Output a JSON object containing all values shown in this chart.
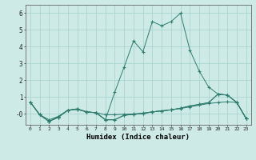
{
  "background_color": "#ceeae7",
  "grid_color": "#aad4d0",
  "line_color": "#2e7d6e",
  "marker_color": "#2e7d6e",
  "xlabel": "Humidex (Indice chaleur)",
  "xlim": [
    -0.5,
    23.5
  ],
  "ylim": [
    -0.65,
    6.5
  ],
  "yticks": [
    0,
    1,
    2,
    3,
    4,
    5,
    6
  ],
  "ytick_labels": [
    "-0",
    "1",
    "2",
    "3",
    "4",
    "5",
    "6"
  ],
  "xticks": [
    0,
    1,
    2,
    3,
    4,
    5,
    6,
    7,
    8,
    9,
    10,
    11,
    12,
    13,
    14,
    15,
    16,
    17,
    18,
    19,
    20,
    21,
    22,
    23
  ],
  "series": [
    {
      "x": [
        0,
        1,
        2,
        3,
        4,
        5,
        6,
        7,
        8,
        9,
        10,
        11,
        12,
        13,
        14,
        15,
        16,
        17,
        18,
        19,
        20,
        21,
        22,
        23
      ],
      "y": [
        0.7,
        -0.05,
        -0.35,
        -0.15,
        0.22,
        0.27,
        0.12,
        0.07,
        -0.05,
        -0.05,
        -0.02,
        0.0,
        0.05,
        0.12,
        0.18,
        0.24,
        0.32,
        0.42,
        0.52,
        0.62,
        0.68,
        0.72,
        0.68,
        -0.28
      ]
    },
    {
      "x": [
        0,
        1,
        2,
        3,
        4,
        5,
        6,
        7,
        8,
        9,
        10,
        11,
        12,
        13,
        14,
        15,
        16,
        17,
        18,
        19,
        20,
        21,
        22,
        23
      ],
      "y": [
        0.7,
        -0.05,
        -0.45,
        -0.15,
        0.22,
        0.27,
        0.12,
        0.07,
        -0.35,
        -0.35,
        -0.08,
        -0.03,
        0.02,
        0.12,
        0.18,
        0.24,
        0.34,
        0.47,
        0.57,
        0.67,
        1.18,
        1.12,
        0.68,
        -0.28
      ]
    },
    {
      "x": [
        0,
        1,
        2,
        3,
        4,
        5,
        6,
        7,
        8,
        9,
        10,
        11,
        12,
        13,
        14,
        15,
        16,
        17,
        18,
        19,
        20,
        21,
        22,
        23
      ],
      "y": [
        0.7,
        -0.05,
        -0.45,
        -0.2,
        0.22,
        0.3,
        0.12,
        0.07,
        -0.35,
        1.3,
        2.8,
        4.35,
        3.7,
        5.5,
        5.25,
        5.5,
        6.0,
        3.8,
        2.55,
        1.6,
        1.18,
        1.12,
        0.68,
        -0.28
      ]
    },
    {
      "x": [
        0,
        1,
        2,
        3,
        4,
        5,
        6,
        7,
        8,
        9,
        10,
        11,
        12,
        13,
        14,
        15,
        16,
        17,
        18,
        19,
        20,
        21,
        22,
        23
      ],
      "y": [
        0.7,
        -0.05,
        -0.45,
        -0.2,
        0.22,
        0.3,
        0.12,
        0.07,
        -0.35,
        -0.35,
        -0.08,
        -0.03,
        0.02,
        0.12,
        0.18,
        0.24,
        0.34,
        0.47,
        0.57,
        0.67,
        1.18,
        1.12,
        0.68,
        -0.28
      ]
    }
  ]
}
